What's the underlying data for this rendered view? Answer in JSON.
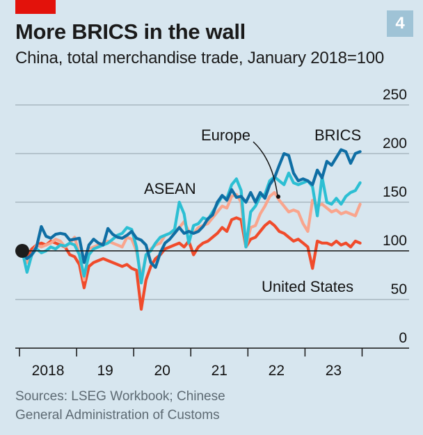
{
  "header": {
    "badge_number": "4",
    "title": "More BRICS in the wall",
    "subtitle": "China, total merchandise trade, January 2018=100"
  },
  "footer": {
    "source_line1": "Sources: LSEG Workbook; Chinese",
    "source_line2": "General Administration of Customs"
  },
  "colors": {
    "background": "#d7e6ef",
    "brand_red": "#e3120b",
    "badge": "#9fc3d6",
    "BRICS": "#0f6ea4",
    "ASEAN": "#2cbfd3",
    "Europe": "#f9a58d",
    "United States": "#f04b2b",
    "gridline": "#a9b7c0",
    "baseline": "#121212"
  },
  "chart_data": {
    "type": "line",
    "title": "More BRICS in the wall",
    "subtitle": "China, total merchandise trade, January 2018=100",
    "xlabel": "",
    "ylabel": "",
    "x_start": "2018-01",
    "x_frequency": "monthly",
    "x_ticks": [
      "2018",
      "19",
      "20",
      "21",
      "22",
      "23"
    ],
    "y_ticks": [
      0,
      50,
      100,
      150,
      200,
      250
    ],
    "ylim": [
      0,
      250
    ],
    "y_axis_side": "right",
    "grid": true,
    "baseline_value": 100,
    "start_marker": {
      "x": "2018-01",
      "y": 100
    },
    "series": [
      {
        "name": "BRICS",
        "label": "BRICS",
        "values": [
          100,
          92,
          96,
          104,
          125,
          115,
          113,
          117,
          118,
          117,
          111,
          112,
          113,
          88,
          106,
          112,
          108,
          106,
          123,
          117,
          114,
          113,
          116,
          120,
          113,
          111,
          106,
          88,
          83,
          98,
          108,
          112,
          118,
          124,
          118,
          120,
          118,
          120,
          125,
          133,
          137,
          150,
          157,
          152,
          163,
          155,
          156,
          150,
          160,
          150,
          160,
          154,
          168,
          175,
          188,
          200,
          198,
          180,
          172,
          174,
          172,
          168,
          183,
          175,
          192,
          188,
          196,
          204,
          202,
          190,
          200,
          202
        ]
      },
      {
        "name": "ASEAN",
        "label": "ASEAN",
        "values": [
          100,
          78,
          96,
          102,
          98,
          100,
          104,
          102,
          106,
          105,
          108,
          106,
          96,
          74,
          96,
          102,
          104,
          106,
          108,
          112,
          116,
          118,
          124,
          122,
          104,
          67,
          96,
          100,
          108,
          114,
          116,
          118,
          122,
          150,
          138,
          108,
          126,
          128,
          134,
          132,
          140,
          148,
          156,
          154,
          168,
          174,
          162,
          104,
          140,
          146,
          156,
          158,
          172,
          176,
          172,
          168,
          180,
          170,
          168,
          170,
          172,
          166,
          136,
          176,
          150,
          148,
          154,
          148,
          156,
          160,
          162,
          170
        ]
      },
      {
        "name": "Europe",
        "label": "Europe",
        "values": [
          100,
          88,
          96,
          106,
          104,
          106,
          108,
          112,
          110,
          104,
          108,
          114,
          96,
          70,
          102,
          104,
          106,
          108,
          110,
          108,
          106,
          104,
          114,
          112,
          100,
          72,
          94,
          102,
          106,
          108,
          116,
          118,
          120,
          124,
          130,
          120,
          118,
          124,
          126,
          128,
          134,
          140,
          146,
          144,
          156,
          158,
          150,
          104,
          124,
          126,
          138,
          146,
          156,
          160,
          152,
          146,
          140,
          142,
          140,
          128,
          120,
          152,
          146,
          148,
          144,
          140,
          142,
          138,
          140,
          138,
          136,
          148
        ]
      },
      {
        "name": "United States",
        "label": "United States",
        "values": [
          100,
          94,
          102,
          106,
          108,
          106,
          110,
          108,
          106,
          104,
          96,
          94,
          86,
          62,
          84,
          88,
          90,
          92,
          90,
          88,
          86,
          84,
          86,
          82,
          80,
          40,
          70,
          84,
          92,
          96,
          102,
          104,
          106,
          108,
          104,
          110,
          96,
          104,
          108,
          110,
          114,
          118,
          124,
          120,
          132,
          134,
          132,
          104,
          112,
          114,
          120,
          126,
          130,
          126,
          120,
          118,
          114,
          110,
          112,
          108,
          104,
          82,
          110,
          108,
          108,
          106,
          110,
          106,
          108,
          104,
          110,
          108
        ]
      }
    ],
    "annotations": [
      {
        "text": "ASEAN",
        "series": "ASEAN"
      },
      {
        "text": "Europe",
        "series": "Europe",
        "leader_line": true,
        "points_to": "2022-03"
      },
      {
        "text": "BRICS",
        "series": "BRICS"
      },
      {
        "text": "United States",
        "series": "United States"
      }
    ],
    "legend": "inline-labels"
  }
}
